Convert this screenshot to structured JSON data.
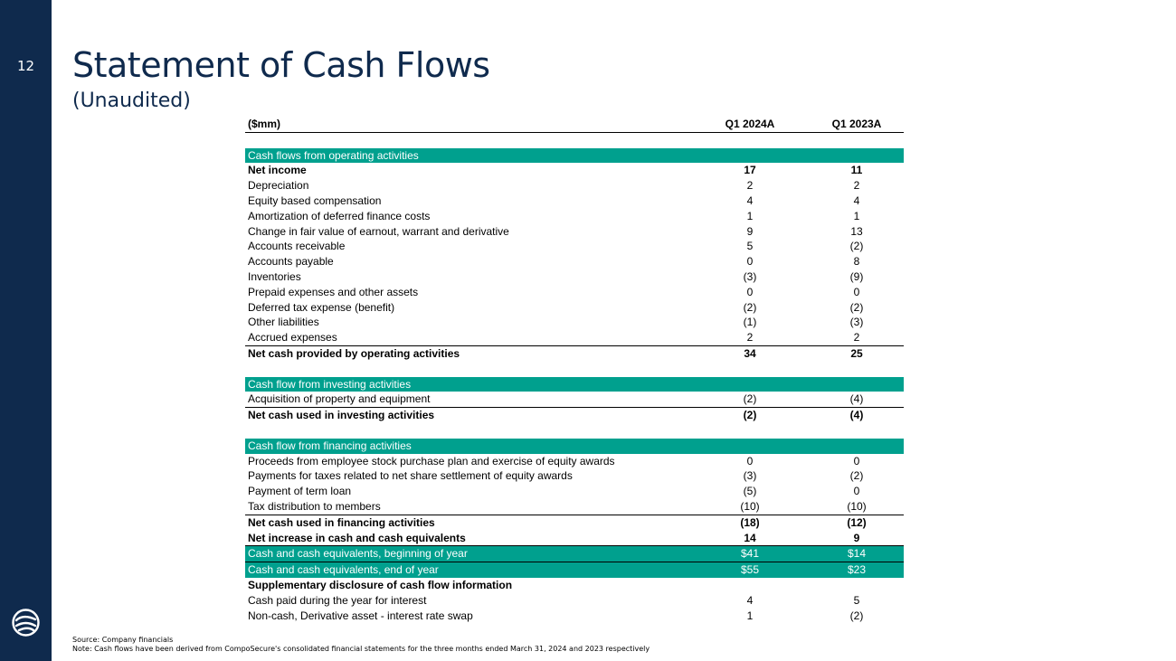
{
  "page": {
    "number": "12",
    "title": "Statement of Cash Flows",
    "subtitle": "(Unaudited)"
  },
  "table": {
    "header": {
      "label": "($mm)",
      "col1": "Q1 2024A",
      "col2": "Q1 2023A"
    },
    "operating": {
      "section_label": "Cash flows from operating activities",
      "rows": [
        {
          "label": "Net income",
          "col1": "17",
          "col2": "11"
        },
        {
          "label": "Depreciation",
          "col1": "2",
          "col2": "2"
        },
        {
          "label": "Equity based compensation",
          "col1": "4",
          "col2": "4"
        },
        {
          "label": "Amortization of deferred finance costs",
          "col1": "1",
          "col2": "1"
        },
        {
          "label": "Change in fair value of earnout, warrant and derivative",
          "col1": "9",
          "col2": "13"
        },
        {
          "label": "Accounts receivable",
          "col1": "5",
          "col2": "(2)"
        },
        {
          "label": "Accounts payable",
          "col1": "0",
          "col2": "8"
        },
        {
          "label": "Inventories",
          "col1": "(3)",
          "col2": "(9)"
        },
        {
          "label": "Prepaid expenses and other assets",
          "col1": "0",
          "col2": "0"
        },
        {
          "label": "Deferred tax expense (benefit)",
          "col1": "(2)",
          "col2": "(2)"
        },
        {
          "label": "Other liabilities",
          "col1": "(1)",
          "col2": "(3)"
        },
        {
          "label": "Accrued expenses",
          "col1": "2",
          "col2": "2"
        }
      ],
      "total": {
        "label": "Net cash provided by operating activities",
        "col1": "34",
        "col2": "25"
      }
    },
    "investing": {
      "section_label": "Cash flow from investing activities",
      "rows": [
        {
          "label": "Acquisition of property and equipment",
          "col1": "(2)",
          "col2": "(4)"
        }
      ],
      "total": {
        "label": "Net cash used in investing activities",
        "col1": "(2)",
        "col2": "(4)"
      }
    },
    "financing": {
      "section_label": "Cash flow from financing activities",
      "rows": [
        {
          "label": "Proceeds from employee stock purchase plan and exercise of equity awards",
          "col1": "0",
          "col2": "0"
        },
        {
          "label": "Payments for taxes related to net share settlement of equity awards",
          "col1": "(3)",
          "col2": "(2)"
        },
        {
          "label": "Payment of term loan",
          "col1": "(5)",
          "col2": "0"
        },
        {
          "label": "Tax distribution to members",
          "col1": "(10)",
          "col2": "(10)"
        }
      ],
      "total": {
        "label": "Net cash used in financing activities",
        "col1": "(18)",
        "col2": "(12)"
      }
    },
    "net_increase": {
      "label": "Net increase in cash and cash equivalents",
      "col1": "14",
      "col2": "9"
    },
    "cash_beginning": {
      "label": "Cash and cash equivalents, beginning of year",
      "col1": "$41",
      "col2": "$14"
    },
    "cash_end": {
      "label": "Cash and cash equivalents, end of year",
      "col1": "$55",
      "col2": "$23"
    },
    "supplementary": {
      "section_label": "Supplementary disclosure of cash flow information",
      "rows": [
        {
          "label": "Cash paid during the year for interest",
          "col1": "4",
          "col2": "5"
        },
        {
          "label": "Non-cash, Derivative asset - interest rate swap",
          "col1": "1",
          "col2": "(2)"
        }
      ]
    }
  },
  "footnotes": {
    "source": "Source: Company financials",
    "note": "Note: Cash flows have been derived from CompoSecure's consolidated financial statements for the three months ended March 31, 2024 and 2023 respectively"
  },
  "colors": {
    "navy": "#0f2a4d",
    "teal": "#00a08e"
  },
  "icons": {
    "logo": "composecure-logo-icon"
  }
}
